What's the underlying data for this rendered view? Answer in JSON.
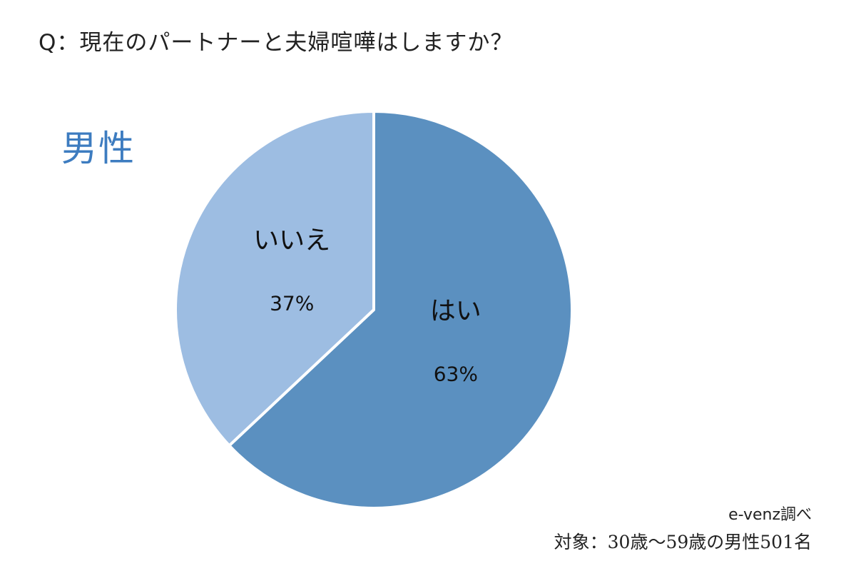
{
  "header": {
    "question": "Q：現在のパートナーと夫婦喧嘩はしますか？",
    "segment_title": "男性"
  },
  "footer": {
    "source": "e-venz調べ",
    "target": "対象：30歳～59歳の男性501名"
  },
  "colors": {
    "title": "#3d7cc0",
    "slice_yes": "#5b90c0",
    "slice_no": "#9dbde2",
    "separator": "#ffffff"
  },
  "chart_data": {
    "type": "pie",
    "title": "",
    "start": "top",
    "direction": "clockwise",
    "slices": [
      {
        "label": "はい",
        "value": 63,
        "display": "63%"
      },
      {
        "label": "いいえ",
        "value": 37,
        "display": "37%"
      }
    ]
  }
}
